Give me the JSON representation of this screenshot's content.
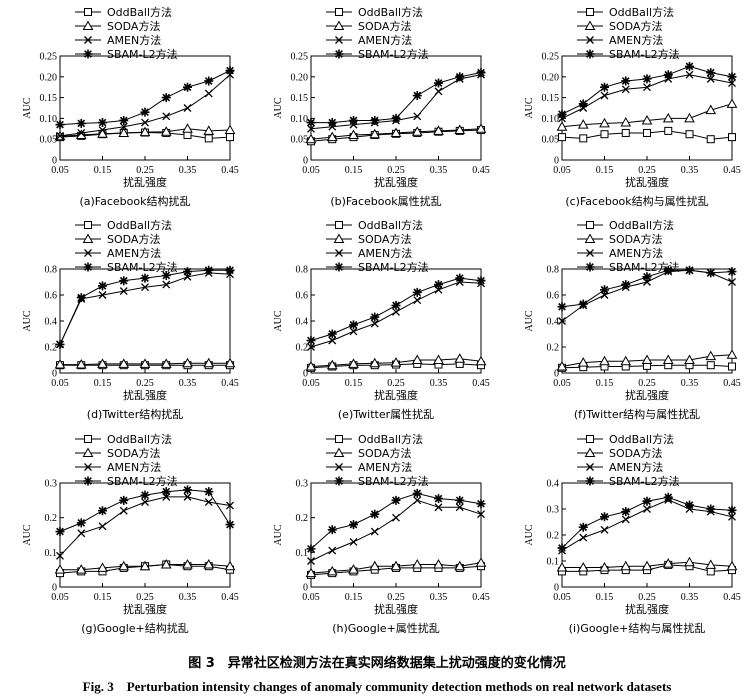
{
  "figure": {
    "caption_cn": "图 3　异常社区检测方法在真实网络数据集上扰动强度的变化情况",
    "caption_en": "Fig. 3　Perturbation intensity changes of anomaly community detection methods on real network datasets"
  },
  "legend_labels": [
    "OddBall方法",
    "SODA方法",
    "AMEN方法",
    "SBAM-L2方法"
  ],
  "chart_data": [
    {
      "type": "line",
      "title": "(a)Facebook结构扰乱",
      "xlabel": "扰乱强度",
      "ylabel": "AUC",
      "x": [
        0.05,
        0.1,
        0.15,
        0.2,
        0.25,
        0.3,
        0.35,
        0.4,
        0.45
      ],
      "xticks": [
        "0.05",
        "0.15",
        "0.25",
        "0.35",
        "0.45"
      ],
      "ylim": [
        0,
        0.25
      ],
      "yticks": [
        "0",
        "0.05",
        "0.10",
        "0.15",
        "0.20",
        "0.25"
      ],
      "series": [
        {
          "name": "OddBall方法",
          "values": [
            0.055,
            0.058,
            0.062,
            0.065,
            0.066,
            0.065,
            0.06,
            0.052,
            0.055
          ]
        },
        {
          "name": "SODA方法",
          "values": [
            0.057,
            0.06,
            0.063,
            0.065,
            0.067,
            0.068,
            0.075,
            0.07,
            0.072
          ]
        },
        {
          "name": "AMEN方法",
          "values": [
            0.058,
            0.065,
            0.072,
            0.08,
            0.09,
            0.105,
            0.125,
            0.16,
            0.205
          ]
        },
        {
          "name": "SBAM-L2方法",
          "values": [
            0.085,
            0.088,
            0.09,
            0.095,
            0.115,
            0.15,
            0.175,
            0.19,
            0.215
          ]
        }
      ]
    },
    {
      "type": "line",
      "title": "(b)Facebook属性扰乱",
      "xlabel": "扰乱强度",
      "ylabel": "AUC",
      "x": [
        0.05,
        0.1,
        0.15,
        0.2,
        0.25,
        0.3,
        0.35,
        0.4,
        0.45
      ],
      "xticks": [
        "0.05",
        "0.15",
        "0.25",
        "0.35",
        "0.45"
      ],
      "ylim": [
        0,
        0.25
      ],
      "yticks": [
        "0",
        "0.05",
        "0.10",
        "0.15",
        "0.20",
        "0.25"
      ],
      "series": [
        {
          "name": "OddBall方法",
          "values": [
            0.045,
            0.05,
            0.055,
            0.06,
            0.063,
            0.065,
            0.068,
            0.07,
            0.072
          ]
        },
        {
          "name": "SODA方法",
          "values": [
            0.05,
            0.055,
            0.06,
            0.062,
            0.065,
            0.068,
            0.07,
            0.072,
            0.075
          ]
        },
        {
          "name": "AMEN方法",
          "values": [
            0.075,
            0.08,
            0.085,
            0.09,
            0.095,
            0.105,
            0.165,
            0.195,
            0.205
          ]
        },
        {
          "name": "SBAM-L2方法",
          "values": [
            0.09,
            0.09,
            0.095,
            0.095,
            0.1,
            0.155,
            0.185,
            0.2,
            0.21
          ]
        }
      ]
    },
    {
      "type": "line",
      "title": "(c)Facebook结构与属性扰乱",
      "xlabel": "扰乱强度",
      "ylabel": "AUC",
      "x": [
        0.05,
        0.1,
        0.15,
        0.2,
        0.25,
        0.3,
        0.35,
        0.4,
        0.45
      ],
      "xticks": [
        "0.05",
        "0.15",
        "0.25",
        "0.35",
        "0.45"
      ],
      "ylim": [
        0,
        0.25
      ],
      "yticks": [
        "0",
        "0.05",
        "0.10",
        "0.15",
        "0.20",
        "0.25"
      ],
      "series": [
        {
          "name": "OddBall方法",
          "values": [
            0.055,
            0.052,
            0.062,
            0.065,
            0.065,
            0.07,
            0.062,
            0.05,
            0.055
          ]
        },
        {
          "name": "SODA方法",
          "values": [
            0.08,
            0.085,
            0.088,
            0.09,
            0.095,
            0.1,
            0.1,
            0.12,
            0.135
          ]
        },
        {
          "name": "AMEN方法",
          "values": [
            0.1,
            0.125,
            0.155,
            0.17,
            0.175,
            0.195,
            0.205,
            0.195,
            0.185
          ]
        },
        {
          "name": "SBAM-L2方法",
          "values": [
            0.11,
            0.135,
            0.175,
            0.19,
            0.195,
            0.205,
            0.225,
            0.21,
            0.2
          ]
        }
      ]
    },
    {
      "type": "line",
      "title": "(d)Twitter结构扰乱",
      "xlabel": "扰乱强度",
      "ylabel": "AUC",
      "x": [
        0.05,
        0.1,
        0.15,
        0.2,
        0.25,
        0.3,
        0.35,
        0.4,
        0.45
      ],
      "xticks": [
        "0.05",
        "0.15",
        "0.25",
        "0.35",
        "0.45"
      ],
      "ylim": [
        0,
        0.8
      ],
      "yticks": [
        "0",
        "0.2",
        "0.4",
        "0.6",
        "0.8"
      ],
      "series": [
        {
          "name": "OddBall方法",
          "values": [
            0.06,
            0.06,
            0.06,
            0.06,
            0.06,
            0.06,
            0.06,
            0.06,
            0.06
          ]
        },
        {
          "name": "SODA方法",
          "values": [
            0.065,
            0.065,
            0.07,
            0.07,
            0.07,
            0.07,
            0.075,
            0.075,
            0.075
          ]
        },
        {
          "name": "AMEN方法",
          "values": [
            0.22,
            0.57,
            0.6,
            0.63,
            0.66,
            0.68,
            0.74,
            0.77,
            0.76
          ]
        },
        {
          "name": "SBAM-L2方法",
          "values": [
            0.22,
            0.58,
            0.67,
            0.71,
            0.73,
            0.75,
            0.78,
            0.79,
            0.79
          ]
        }
      ]
    },
    {
      "type": "line",
      "title": "(e)Twitter属性扰乱",
      "xlabel": "扰乱强度",
      "ylabel": "AUC",
      "x": [
        0.05,
        0.1,
        0.15,
        0.2,
        0.25,
        0.3,
        0.35,
        0.4,
        0.45
      ],
      "xticks": [
        "0.05",
        "0.15",
        "0.25",
        "0.35",
        "0.45"
      ],
      "ylim": [
        0,
        0.8
      ],
      "yticks": [
        "0",
        "0.2",
        "0.4",
        "0.6",
        "0.8"
      ],
      "series": [
        {
          "name": "OddBall方法",
          "values": [
            0.04,
            0.05,
            0.06,
            0.06,
            0.065,
            0.07,
            0.065,
            0.07,
            0.06
          ]
        },
        {
          "name": "SODA方法",
          "values": [
            0.05,
            0.06,
            0.07,
            0.075,
            0.08,
            0.1,
            0.1,
            0.11,
            0.09
          ]
        },
        {
          "name": "AMEN方法",
          "values": [
            0.2,
            0.25,
            0.32,
            0.38,
            0.47,
            0.56,
            0.64,
            0.7,
            0.69
          ]
        },
        {
          "name": "SBAM-L2方法",
          "values": [
            0.25,
            0.3,
            0.37,
            0.43,
            0.52,
            0.62,
            0.68,
            0.73,
            0.71
          ]
        }
      ]
    },
    {
      "type": "line",
      "title": "(f)Twitter结构与属性扰乱",
      "xlabel": "扰乱强度",
      "ylabel": "AUC",
      "x": [
        0.05,
        0.1,
        0.15,
        0.2,
        0.25,
        0.3,
        0.35,
        0.4,
        0.45
      ],
      "xticks": [
        "0.05",
        "0.15",
        "0.25",
        "0.35",
        "0.45"
      ],
      "ylim": [
        0,
        0.8
      ],
      "yticks": [
        "0",
        "0.2",
        "0.4",
        "0.6",
        "0.8"
      ],
      "series": [
        {
          "name": "OddBall方法",
          "values": [
            0.04,
            0.045,
            0.05,
            0.05,
            0.055,
            0.06,
            0.06,
            0.06,
            0.05
          ]
        },
        {
          "name": "SODA方法",
          "values": [
            0.05,
            0.08,
            0.09,
            0.09,
            0.1,
            0.1,
            0.1,
            0.13,
            0.14
          ]
        },
        {
          "name": "AMEN方法",
          "values": [
            0.4,
            0.52,
            0.6,
            0.66,
            0.7,
            0.78,
            0.79,
            0.77,
            0.7
          ]
        },
        {
          "name": "SBAM-L2方法",
          "values": [
            0.51,
            0.53,
            0.64,
            0.68,
            0.74,
            0.79,
            0.79,
            0.77,
            0.78
          ]
        }
      ]
    },
    {
      "type": "line",
      "title": "(g)Google+结构扰乱",
      "xlabel": "扰乱强度",
      "ylabel": "AUC",
      "x": [
        0.05,
        0.1,
        0.15,
        0.2,
        0.25,
        0.3,
        0.35,
        0.4,
        0.45
      ],
      "xticks": [
        "0.05",
        "0.15",
        "0.25",
        "0.35",
        "0.45"
      ],
      "ylim": [
        0,
        0.3
      ],
      "yticks": [
        "0",
        "0.1",
        "0.2",
        "0.3"
      ],
      "series": [
        {
          "name": "OddBall方法",
          "values": [
            0.04,
            0.045,
            0.045,
            0.055,
            0.06,
            0.065,
            0.06,
            0.06,
            0.05
          ]
        },
        {
          "name": "SODA方法",
          "values": [
            0.05,
            0.05,
            0.055,
            0.06,
            0.06,
            0.065,
            0.065,
            0.065,
            0.06
          ]
        },
        {
          "name": "AMEN方法",
          "values": [
            0.09,
            0.155,
            0.175,
            0.22,
            0.245,
            0.26,
            0.26,
            0.245,
            0.235
          ]
        },
        {
          "name": "SBAM-L2方法",
          "values": [
            0.16,
            0.185,
            0.22,
            0.25,
            0.265,
            0.275,
            0.28,
            0.275,
            0.18
          ]
        }
      ]
    },
    {
      "type": "line",
      "title": "(h)Google+属性扰乱",
      "xlabel": "扰乱强度",
      "ylabel": "AUC",
      "x": [
        0.05,
        0.1,
        0.15,
        0.2,
        0.25,
        0.3,
        0.35,
        0.4,
        0.45
      ],
      "xticks": [
        "0.05",
        "0.15",
        "0.25",
        "0.35",
        "0.45"
      ],
      "ylim": [
        0,
        0.3
      ],
      "yticks": [
        "0",
        "0.1",
        "0.2",
        "0.3"
      ],
      "series": [
        {
          "name": "OddBall方法",
          "values": [
            0.035,
            0.04,
            0.045,
            0.05,
            0.055,
            0.055,
            0.055,
            0.055,
            0.06
          ]
        },
        {
          "name": "SODA方法",
          "values": [
            0.04,
            0.045,
            0.05,
            0.06,
            0.06,
            0.065,
            0.065,
            0.06,
            0.07
          ]
        },
        {
          "name": "AMEN方法",
          "values": [
            0.075,
            0.105,
            0.13,
            0.16,
            0.2,
            0.25,
            0.23,
            0.23,
            0.21
          ]
        },
        {
          "name": "SBAM-L2方法",
          "values": [
            0.11,
            0.165,
            0.18,
            0.21,
            0.25,
            0.27,
            0.255,
            0.25,
            0.24
          ]
        }
      ]
    },
    {
      "type": "line",
      "title": "(i)Google+结构与属性扰乱",
      "xlabel": "扰乱强度",
      "ylabel": "AUC",
      "x": [
        0.05,
        0.1,
        0.15,
        0.2,
        0.25,
        0.3,
        0.35,
        0.4,
        0.45
      ],
      "xticks": [
        "0.05",
        "0.15",
        "0.25",
        "0.35",
        "0.45"
      ],
      "ylim": [
        0,
        0.4
      ],
      "yticks": [
        "0",
        "0.1",
        "0.2",
        "0.3",
        "0.4"
      ],
      "series": [
        {
          "name": "OddBall方法",
          "values": [
            0.06,
            0.06,
            0.065,
            0.065,
            0.065,
            0.085,
            0.08,
            0.06,
            0.065
          ]
        },
        {
          "name": "SODA方法",
          "values": [
            0.075,
            0.075,
            0.075,
            0.08,
            0.08,
            0.09,
            0.095,
            0.085,
            0.08
          ]
        },
        {
          "name": "AMEN方法",
          "values": [
            0.14,
            0.19,
            0.22,
            0.26,
            0.3,
            0.335,
            0.3,
            0.29,
            0.27
          ]
        },
        {
          "name": "SBAM-L2方法",
          "values": [
            0.15,
            0.23,
            0.27,
            0.29,
            0.33,
            0.345,
            0.315,
            0.3,
            0.295
          ]
        }
      ]
    }
  ]
}
